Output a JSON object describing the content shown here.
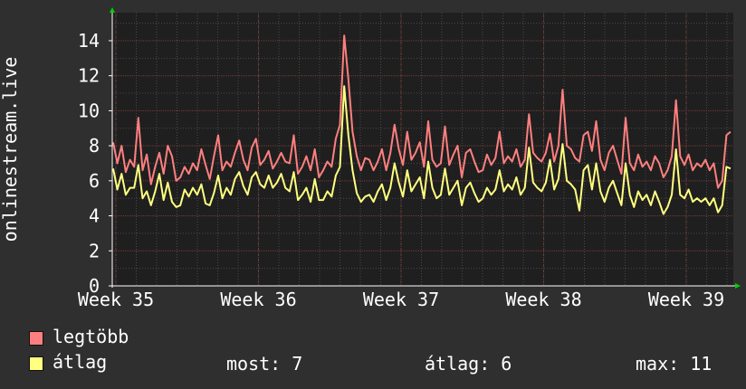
{
  "chart_data": {
    "type": "line",
    "ylabel": "onlinestream.live",
    "ylim": [
      0,
      15.6
    ],
    "yticks": [
      0,
      2,
      4,
      6,
      8,
      10,
      12,
      14
    ],
    "x_tick_labels": [
      "Week 35",
      "Week 36",
      "Week 37",
      "Week 38",
      "Week 39"
    ],
    "grid": true,
    "series": [
      {
        "name": "legtöbb",
        "color": "#ff7f7f",
        "values": [
          8.2,
          7.0,
          8.0,
          6.5,
          7.2,
          6.8,
          9.6,
          6.6,
          7.5,
          5.8,
          6.8,
          7.6,
          6.4,
          8.0,
          7.4,
          6.0,
          6.2,
          6.8,
          6.4,
          7.0,
          6.6,
          7.8,
          6.9,
          6.1,
          7.4,
          8.6,
          6.6,
          7.1,
          6.8,
          7.6,
          8.3,
          7.2,
          6.6,
          7.9,
          8.4,
          6.9,
          7.2,
          7.7,
          6.7,
          7.1,
          7.6,
          7.1,
          7.0,
          8.6,
          6.4,
          6.8,
          7.4,
          6.6,
          7.8,
          6.2,
          6.6,
          7.1,
          6.8,
          8.4,
          9.2,
          14.3,
          11.8,
          8.8,
          7.4,
          6.6,
          7.3,
          7.2,
          6.6,
          7.1,
          7.8,
          6.6,
          7.6,
          9.2,
          7.8,
          6.9,
          8.8,
          7.2,
          7.6,
          8.2,
          6.8,
          9.4,
          7.2,
          6.8,
          7.0,
          9.1,
          6.9,
          7.5,
          8.0,
          6.2,
          7.6,
          7.8,
          7.1,
          6.5,
          6.6,
          7.5,
          6.9,
          7.3,
          8.8,
          7.0,
          7.4,
          7.1,
          7.8,
          6.8,
          7.2,
          9.8,
          7.6,
          7.3,
          7.1,
          7.6,
          8.7,
          7.1,
          8.0,
          11.2,
          8.0,
          7.8,
          7.3,
          7.1,
          8.6,
          8.8,
          7.7,
          9.4,
          7.2,
          6.6,
          7.6,
          8.0,
          7.2,
          6.4,
          9.6,
          7.0,
          6.6,
          7.5,
          6.8,
          7.1,
          6.6,
          7.4,
          7.0,
          6.2,
          6.6,
          7.4,
          10.6,
          7.4,
          6.9,
          7.5,
          6.6,
          7.0,
          6.8,
          7.2,
          6.6,
          7.0,
          5.6,
          6.0,
          8.6,
          8.8
        ]
      },
      {
        "name": "átlag",
        "color": "#ffff80",
        "values": [
          6.7,
          5.5,
          6.4,
          5.2,
          5.6,
          5.6,
          6.9,
          5.0,
          5.4,
          4.6,
          5.4,
          6.4,
          4.9,
          5.9,
          4.8,
          4.5,
          4.6,
          5.5,
          5.1,
          5.6,
          5.2,
          5.8,
          4.7,
          4.6,
          5.3,
          6.3,
          5.0,
          5.6,
          5.2,
          6.1,
          6.5,
          5.7,
          5.2,
          6.2,
          6.5,
          5.8,
          5.6,
          6.3,
          5.6,
          5.9,
          6.4,
          5.6,
          5.4,
          6.5,
          4.9,
          5.2,
          5.6,
          4.8,
          6.1,
          4.9,
          4.9,
          5.4,
          5.1,
          6.3,
          6.8,
          11.4,
          8.6,
          6.6,
          5.3,
          4.8,
          5.1,
          5.2,
          4.8,
          5.4,
          5.8,
          4.9,
          5.6,
          7.0,
          5.9,
          5.1,
          6.6,
          5.4,
          5.8,
          6.2,
          5.0,
          7.1,
          5.6,
          5.0,
          5.2,
          6.7,
          5.2,
          5.6,
          6.0,
          4.6,
          5.6,
          5.9,
          5.3,
          4.8,
          5.0,
          5.6,
          5.2,
          5.5,
          6.6,
          5.4,
          5.8,
          5.5,
          6.2,
          5.2,
          5.6,
          7.9,
          5.9,
          5.6,
          5.4,
          5.9,
          7.2,
          5.5,
          6.1,
          8.1,
          6.0,
          5.8,
          5.5,
          4.3,
          6.6,
          6.9,
          5.5,
          7.0,
          5.4,
          4.8,
          5.6,
          6.0,
          5.3,
          4.6,
          7.0,
          5.2,
          4.5,
          5.4,
          4.9,
          5.2,
          4.6,
          5.4,
          4.8,
          4.1,
          4.5,
          5.2,
          7.8,
          5.2,
          5.0,
          5.5,
          4.8,
          5.0,
          4.8,
          5.0,
          4.6,
          5.0,
          4.2,
          4.6,
          6.8,
          6.7
        ]
      }
    ]
  },
  "stats": [
    {
      "label": "most:",
      "value": "7"
    },
    {
      "label": "átlag:",
      "value": "6"
    },
    {
      "label": "max:",
      "value": "11"
    }
  ]
}
